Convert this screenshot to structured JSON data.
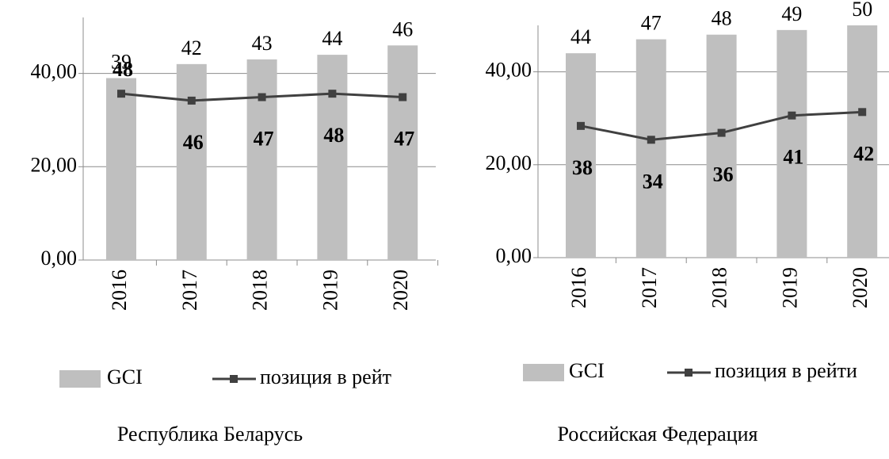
{
  "chart_data": [
    {
      "type": "bar-line",
      "title": "Республика Беларусь",
      "categories": [
        "2016",
        "2017",
        "2018",
        "2019",
        "2020"
      ],
      "series": [
        {
          "name": "GCI",
          "color": "#bfbfbf",
          "values": [
            39,
            42,
            43,
            44,
            46
          ]
        },
        {
          "name": "позиция в рейт",
          "color": "#404040",
          "axis": "y2",
          "values": [
            48,
            46,
            47,
            48,
            47
          ]
        }
      ],
      "ylim": [
        0,
        52
      ],
      "yticks": [
        {
          "value": 0,
          "label": "0,00"
        },
        {
          "value": 20,
          "label": "20,00"
        },
        {
          "value": 40,
          "label": "40,00"
        }
      ],
      "y2lim": [
        0,
        70
      ],
      "grid": true
    },
    {
      "type": "bar-line",
      "title": "Российская Федерация",
      "categories": [
        "2016",
        "2017",
        "2018",
        "2019",
        "2020"
      ],
      "series": [
        {
          "name": "GCI",
          "color": "#bfbfbf",
          "values": [
            44,
            47,
            48,
            49,
            50
          ]
        },
        {
          "name": "позиция в рейти",
          "color": "#404040",
          "axis": "y2",
          "values": [
            38,
            34,
            36,
            41,
            42
          ]
        }
      ],
      "ylim": [
        0,
        50
      ],
      "yticks": [
        {
          "value": 0,
          "label": "0,00"
        },
        {
          "value": 20,
          "label": "20,00"
        },
        {
          "value": 40,
          "label": "40,00"
        }
      ],
      "y2lim": [
        0,
        67
      ],
      "grid": true
    }
  ]
}
